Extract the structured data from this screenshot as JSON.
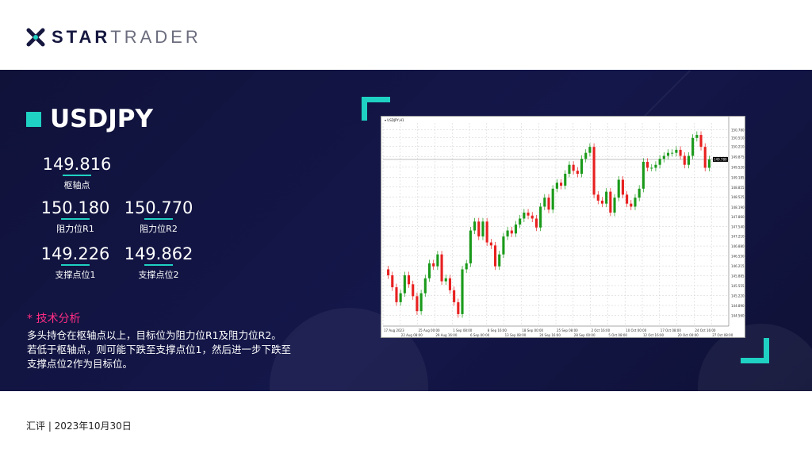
{
  "brand": {
    "name_bold": "STAR",
    "name_light": "TRADER"
  },
  "title": "USDJPY",
  "levels": {
    "pivot": {
      "value": "149.816",
      "label": "枢轴点"
    },
    "r1": {
      "value": "150.180",
      "label": "阻力位R1"
    },
    "r2": {
      "value": "150.770",
      "label": "阻力位R2"
    },
    "s1": {
      "value": "149.226",
      "label": "支撑点位1"
    },
    "s2": {
      "value": "149.862",
      "label": "支撑点位2"
    }
  },
  "analysis": {
    "heading": "* 技术分析",
    "lines": [
      "多头持仓在枢轴点以上，目标位为阻力位R1及阻力位R2。",
      "若低于枢轴点，则可能下跌至支撑点位1，然后进一步下跌至",
      "支撑点位2作为目标位。"
    ]
  },
  "footer": "汇评 | 2023年10月30日",
  "colors": {
    "accent": "#1fd1c2",
    "highlight": "#ff2d84",
    "bull": "#1a9a1a",
    "bear": "#e82020",
    "band": "#12143f"
  },
  "chart_data": {
    "type": "candlestick",
    "symbol_line": "USDJPY,H1",
    "current_price": 149.78,
    "ylim": [
      144.2,
      151.0
    ],
    "yticks": [
      144.56,
      144.89,
      145.22,
      145.555,
      145.885,
      146.215,
      146.55,
      146.88,
      147.21,
      147.54,
      147.86,
      148.19,
      148.525,
      148.855,
      149.185,
      149.52,
      149.875,
      150.21,
      150.51,
      150.78
    ],
    "xticks": [
      "17 Aug 2023",
      "22 Aug 08:00",
      "25 Aug 00:00",
      "29 Aug 16:00",
      "1 Sep 08:00",
      "6 Sep 00:00",
      "8 Sep 16:00",
      "13 Sep 08:00",
      "18 Sep 00:00",
      "20 Sep 16:00",
      "25 Sep 08:00",
      "28 Sep 00:00",
      "2 Oct 16:00",
      "5 Oct 08:00",
      "10 Oct 00:00",
      "12 Oct 16:00",
      "17 Oct 08:00",
      "20 Oct 00:00",
      "24 Oct 16:00",
      "27 Oct 08:00"
    ],
    "closes": [
      145.9,
      145.5,
      145.0,
      145.3,
      145.9,
      145.6,
      145.2,
      144.7,
      145.3,
      145.8,
      146.3,
      146.2,
      146.6,
      145.7,
      145.8,
      145.4,
      145.0,
      144.6,
      146.1,
      146.3,
      147.4,
      147.7,
      147.2,
      147.7,
      147.0,
      146.9,
      146.2,
      146.6,
      147.2,
      147.4,
      147.3,
      147.6,
      147.8,
      148.0,
      147.9,
      147.8,
      147.5,
      148.2,
      148.5,
      148.1,
      148.8,
      149.0,
      148.9,
      149.3,
      149.6,
      149.4,
      149.3,
      149.8,
      150.0,
      150.2,
      148.6,
      148.4,
      148.3,
      148.7,
      148.0,
      148.5,
      149.1,
      148.6,
      148.3,
      148.2,
      148.5,
      148.8,
      149.7,
      149.5,
      149.5,
      149.6,
      149.8,
      149.9,
      150.0,
      150.0,
      150.1,
      149.9,
      149.6,
      149.9,
      150.5,
      150.6,
      150.2,
      149.5,
      149.78
    ]
  }
}
